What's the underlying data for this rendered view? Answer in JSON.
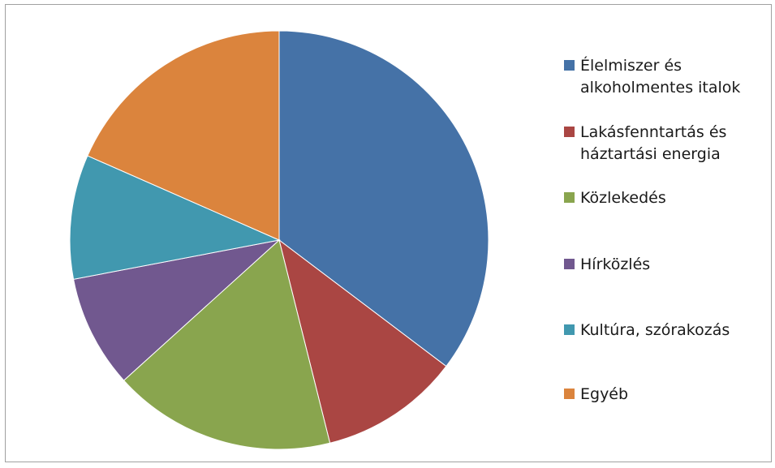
{
  "chart_data": {
    "type": "pie",
    "title": "",
    "start_angle_deg": 0,
    "direction": "clockwise",
    "legend_position": "right",
    "slices": [
      {
        "name": "Élelmiszer és alkoholmentes italok",
        "value": 35.3,
        "color": "#4572A7"
      },
      {
        "name": "Lakásfenntartás és háztartási energia",
        "value": 10.8,
        "color": "#AA4643"
      },
      {
        "name": "Közlekedés",
        "value": 17.2,
        "color": "#89A54E"
      },
      {
        "name": "Hírközlés",
        "value": 8.7,
        "color": "#71588F"
      },
      {
        "name": "Kultúra, szórakozás",
        "value": 9.6,
        "color": "#4198AF"
      },
      {
        "name": "Egyéb",
        "value": 18.4,
        "color": "#DB843D"
      }
    ]
  }
}
